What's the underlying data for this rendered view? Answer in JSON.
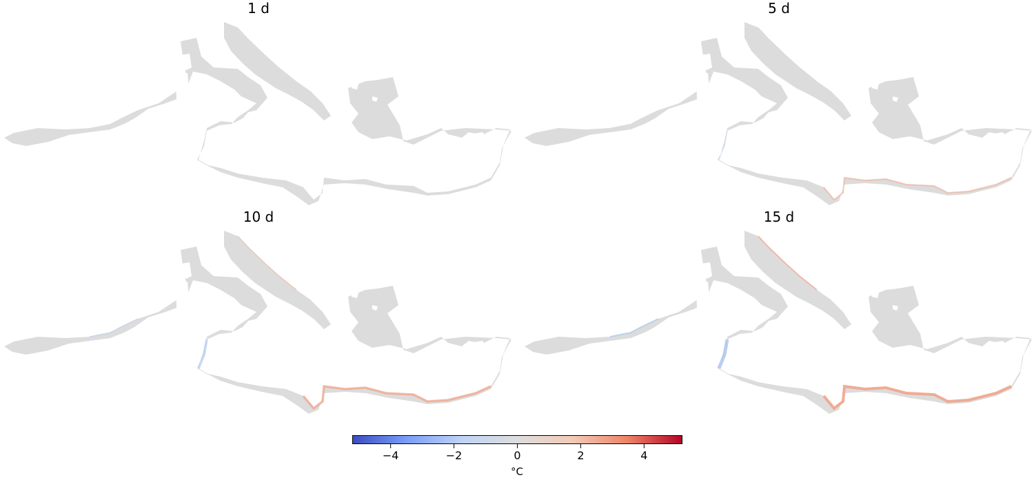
{
  "panels": [
    {
      "title": "1 d",
      "anomaly_level": 0.0
    },
    {
      "title": "5 d",
      "anomaly_level": 0.35
    },
    {
      "title": "10 d",
      "anomaly_level": 0.75
    },
    {
      "title": "15 d",
      "anomaly_level": 1.0
    }
  ],
  "colorbar": {
    "label": "°C",
    "min": -5.2,
    "max": 5.2,
    "ticks": [
      "−4",
      "−2",
      "0",
      "2",
      "4"
    ],
    "tick_values": [
      -4,
      -2,
      0,
      2,
      4
    ],
    "colormap": "coolwarm",
    "colors": [
      "#3b4cc0",
      "#7b9ff9",
      "#c0d4f5",
      "#dddddd",
      "#f2cbb7",
      "#ee8468",
      "#b40426"
    ]
  },
  "colors": {
    "sea": "#dcdcdc",
    "warm_anomaly": "#f0a48a",
    "cold_anomaly": "#a9c3ef"
  }
}
